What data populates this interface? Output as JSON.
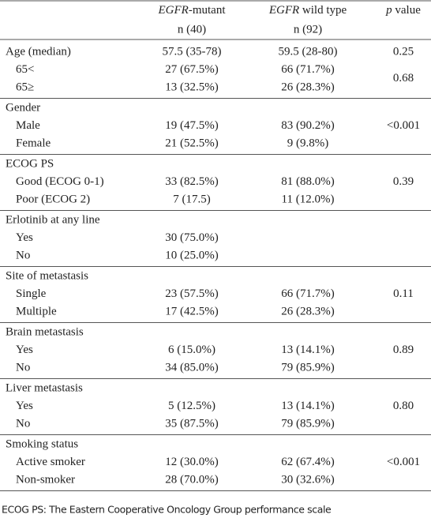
{
  "header": {
    "columns": [
      {
        "italic": "EGFR",
        "rest": "-mutant",
        "n": "n (40)"
      },
      {
        "italic": "EGFR",
        "rest": " wild type",
        "n": "n (92)"
      },
      {
        "italic": "p",
        "rest": " value"
      }
    ]
  },
  "sections": [
    {
      "title": "Age (median)",
      "mutant": "57.5 (35-78)",
      "wild": "59.5 (28-80)",
      "p": "0.25"
    },
    {
      "rows": [
        {
          "label": "65<",
          "mutant": "27 (67.5%)",
          "wild": "66 (71.7%)"
        },
        {
          "label": "65≥",
          "mutant": "13 (32.5%)",
          "wild": "26 (28.3%)"
        }
      ],
      "p": "0.68"
    },
    {
      "title": "Gender",
      "rows": [
        {
          "label": "Male",
          "mutant": "19 (47.5%)",
          "wild": "83 (90.2%)"
        },
        {
          "label": "Female",
          "mutant": "21 (52.5%)",
          "wild": "9 (9.8%)"
        }
      ],
      "p": "<0.001"
    },
    {
      "title": "ECOG PS",
      "rows": [
        {
          "label": "Good (ECOG 0-1)",
          "mutant": "33 (82.5%)",
          "wild": "81 (88.0%)"
        },
        {
          "label": "Poor (ECOG 2)",
          "mutant": "7 (17.5)",
          "wild": "11 (12.0%)"
        }
      ],
      "p": "0.39"
    },
    {
      "title": "Erlotinib at any line",
      "rows": [
        {
          "label": "Yes",
          "mutant": "30 (75.0%)"
        },
        {
          "label": "No",
          "mutant": "10 (25.0%)"
        }
      ]
    },
    {
      "title": "Site of metastasis",
      "rows": [
        {
          "label": "Single",
          "mutant": "23 (57.5%)",
          "wild": "66 (71.7%)"
        },
        {
          "label": "Multiple",
          "mutant": "17 (42.5%)",
          "wild": "26 (28.3%)"
        }
      ],
      "p": "0.11"
    },
    {
      "title": "Brain metastasis",
      "rows": [
        {
          "label": "Yes",
          "mutant": "6 (15.0%)",
          "wild": "13 (14.1%)"
        },
        {
          "label": "No",
          "mutant": "34 (85.0%)",
          "wild": "79 (85.9%)"
        }
      ],
      "p": "0.89"
    },
    {
      "title": "Liver metastasis",
      "rows": [
        {
          "label": "Yes",
          "mutant": "5 (12.5%)",
          "wild": "13 (14.1%)"
        },
        {
          "label": "No",
          "mutant": "35 (87.5%)",
          "wild": "79 (85.9%)"
        }
      ],
      "p": "0.80"
    },
    {
      "title": "Smoking status",
      "rows": [
        {
          "label": "Active smoker",
          "mutant": "12 (30.0%)",
          "wild": "62 (67.4%)"
        },
        {
          "label": "Non-smoker",
          "mutant": "28 (70.0%)",
          "wild": "30 (32.6%)"
        }
      ],
      "p": "<0.001"
    }
  ],
  "footnote": "ECOG PS: The Eastern Cooperative Oncology Group performance scale"
}
